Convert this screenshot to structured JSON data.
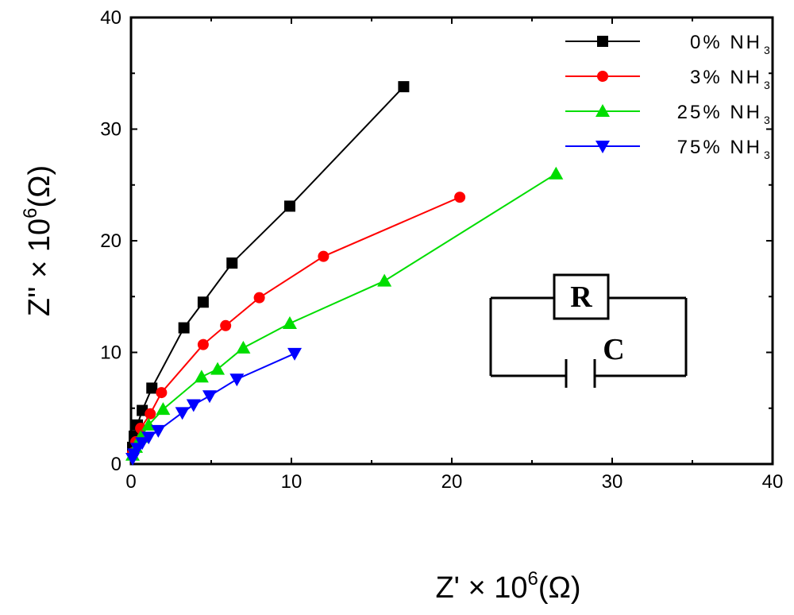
{
  "chart_data": {
    "type": "scatter",
    "title": "",
    "xlabel": {
      "text": "Z' × 10",
      "exp": "6",
      "unit": "(Ω)"
    },
    "ylabel": {
      "text": "Z'' × 10",
      "exp": "6",
      "unit": "(Ω)"
    },
    "xlim": [
      0,
      40
    ],
    "ylim": [
      0,
      40
    ],
    "xticks": [
      "0",
      "10",
      "20",
      "30",
      "40"
    ],
    "yticks": [
      "0",
      "10",
      "20",
      "30",
      "40"
    ],
    "legend_position": "top-right",
    "series": [
      {
        "name": "0% NH",
        "sub": "3",
        "color": "#000000",
        "marker": "square",
        "x": [
          0.1,
          0.2,
          0.4,
          0.7,
          1.3,
          3.3,
          4.5,
          6.3,
          9.9,
          17.0
        ],
        "y": [
          1.5,
          2.5,
          3.5,
          4.8,
          6.8,
          12.2,
          14.5,
          18.0,
          23.1,
          33.8
        ]
      },
      {
        "name": "3% NH",
        "sub": "3",
        "color": "#ff0000",
        "marker": "circle",
        "x": [
          0.1,
          0.3,
          0.6,
          1.2,
          1.9,
          4.5,
          5.9,
          8.0,
          12.0,
          20.5
        ],
        "y": [
          1.0,
          2.0,
          3.2,
          4.5,
          6.4,
          10.7,
          12.4,
          14.9,
          18.6,
          23.9
        ]
      },
      {
        "name": "25% NH",
        "sub": "3",
        "color": "#00dd00",
        "marker": "triangle-up",
        "x": [
          0.1,
          0.3,
          0.6,
          1.1,
          2.0,
          4.4,
          5.4,
          7.0,
          9.9,
          15.8,
          26.5
        ],
        "y": [
          0.8,
          1.5,
          2.4,
          3.5,
          4.9,
          7.8,
          8.5,
          10.4,
          12.6,
          16.4,
          26.0
        ]
      },
      {
        "name": "75% NH",
        "sub": "3",
        "color": "#0000ff",
        "marker": "triangle-down",
        "x": [
          0.1,
          0.2,
          0.4,
          0.7,
          1.1,
          1.7,
          3.2,
          3.9,
          4.9,
          6.6,
          10.2
        ],
        "y": [
          0.5,
          0.9,
          1.4,
          1.9,
          2.4,
          3.0,
          4.6,
          5.3,
          6.1,
          7.6,
          9.9
        ]
      }
    ]
  },
  "circuit": {
    "resistor_label": "R",
    "capacitor_label": "C"
  }
}
